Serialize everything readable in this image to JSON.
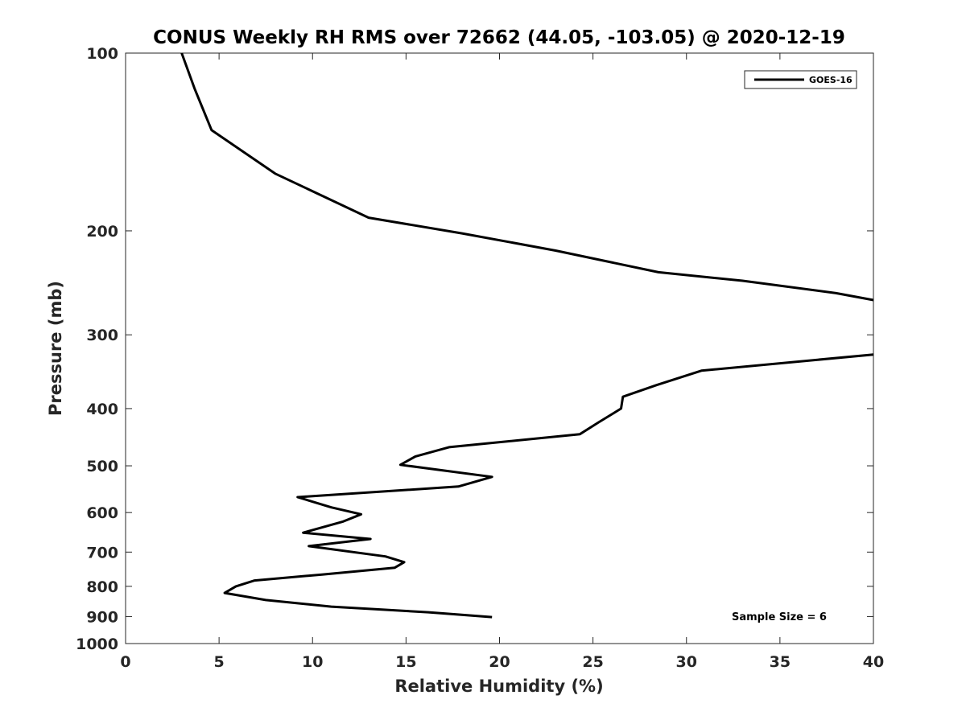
{
  "chart_data": {
    "type": "line",
    "title": "CONUS Weekly RH RMS over 72662 (44.05, -103.05) @ 2020-12-19",
    "xlabel": "Relative Humidity (%)",
    "ylabel": "Pressure (mb)",
    "xlim": [
      0,
      40
    ],
    "ylim": [
      100,
      1000
    ],
    "y_scale": "log",
    "y_reversed": true,
    "grid": false,
    "x_ticks": [
      0,
      5,
      10,
      15,
      20,
      25,
      30,
      35,
      40
    ],
    "x_tick_labels": [
      "0",
      "5",
      "10",
      "15",
      "20",
      "25",
      "30",
      "35",
      "40"
    ],
    "y_ticks": [
      100,
      200,
      300,
      400,
      500,
      600,
      700,
      800,
      900,
      1000
    ],
    "y_tick_labels": [
      "100",
      "200",
      "300",
      "400",
      "500",
      "600",
      "700",
      "800",
      "900",
      "1000"
    ],
    "legend": {
      "position": "top-right",
      "entries": [
        "GOES-16"
      ]
    },
    "annotation": "Sample Size = 6",
    "series_color": "#000000",
    "series": [
      {
        "name": "GOES-16",
        "points": [
          [
            3.0,
            100
          ],
          [
            3.7,
            115
          ],
          [
            4.6,
            135
          ],
          [
            8.0,
            160
          ],
          [
            13.0,
            190
          ],
          [
            18.0,
            202
          ],
          [
            23.0,
            216
          ],
          [
            28.5,
            235
          ],
          [
            33.0,
            243
          ],
          [
            38.0,
            255
          ],
          [
            40.0,
            262
          ],
          null,
          [
            40.0,
            324
          ],
          [
            30.8,
            345
          ],
          [
            28.4,
            365
          ],
          [
            26.6,
            382
          ],
          [
            26.5,
            400
          ],
          [
            25.3,
            422
          ],
          [
            24.3,
            442
          ],
          [
            17.3,
            465
          ],
          [
            15.5,
            482
          ],
          [
            14.7,
            498
          ],
          [
            19.6,
            522
          ],
          [
            17.8,
            542
          ],
          [
            9.2,
            565
          ],
          [
            11.0,
            588
          ],
          [
            12.6,
            604
          ],
          [
            11.6,
            622
          ],
          [
            9.5,
            649
          ],
          [
            13.1,
            665
          ],
          [
            9.8,
            684
          ],
          [
            13.9,
            712
          ],
          [
            14.9,
            728
          ],
          [
            14.4,
            744
          ],
          [
            10.5,
            764
          ],
          [
            6.9,
            782
          ],
          [
            5.9,
            800
          ],
          [
            5.3,
            821
          ],
          [
            7.5,
            844
          ],
          [
            11.0,
            866
          ],
          [
            16.2,
            885
          ],
          [
            19.6,
            902
          ]
        ]
      }
    ]
  }
}
